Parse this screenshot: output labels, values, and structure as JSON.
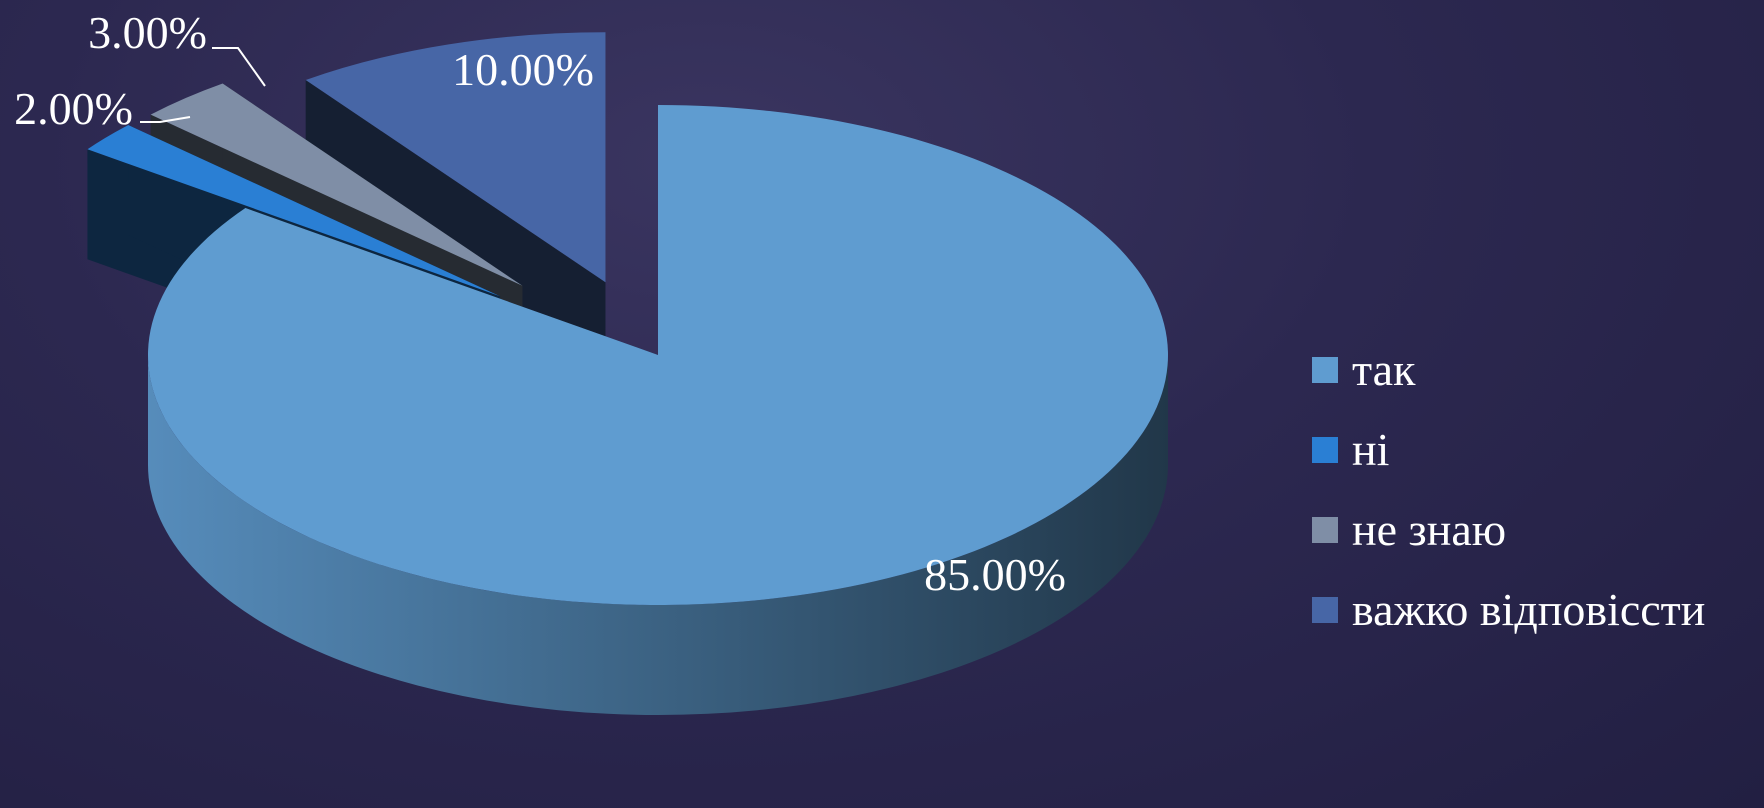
{
  "chart_data": {
    "type": "pie",
    "style": "3d-exploded",
    "categories": [
      "так",
      "ні",
      "не знаю",
      "важко відповісcти"
    ],
    "values": [
      85,
      2,
      3,
      10
    ],
    "labels": [
      "85.00%",
      "2.00%",
      "3.00%",
      "10.00%"
    ],
    "colors": [
      "#5f9cd0",
      "#2a7fd4",
      "#7f8ea6",
      "#4766a6"
    ],
    "legend": {
      "position": "right",
      "items": [
        {
          "label": "так",
          "color": "#5f9cd0"
        },
        {
          "label": "ні",
          "color": "#2a7fd4"
        },
        {
          "label": "не знаю",
          "color": "#7f8ea6"
        },
        {
          "label": "важко відповісcти",
          "color": "#4766a6"
        }
      ]
    }
  }
}
